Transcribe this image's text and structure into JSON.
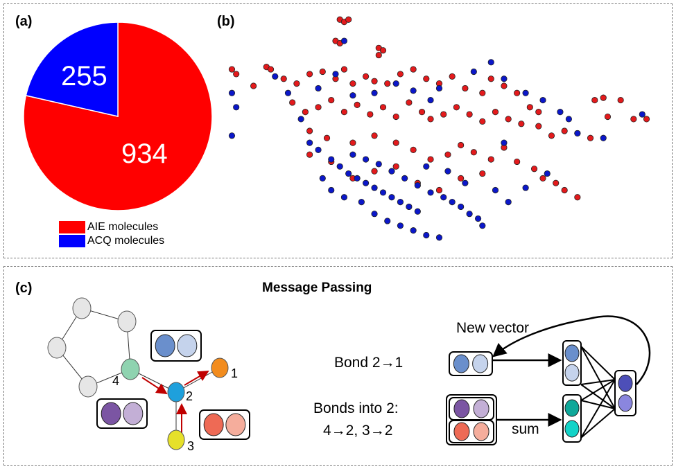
{
  "panels": {
    "a": "(a)",
    "b": "(b)",
    "c": "(c)"
  },
  "chart_data": [
    {
      "type": "pie",
      "slices": [
        {
          "name": "AIE molecules",
          "value": 934,
          "color": "#ff0000"
        },
        {
          "name": "ACQ molecules",
          "value": 255,
          "color": "#0000ff"
        }
      ],
      "legend_placement": "bottom"
    },
    {
      "type": "scatter",
      "axes_visible": false,
      "series": [
        {
          "name": "AIE molecules",
          "color": "#e31a1c",
          "points": [
            [
              27,
              97
            ],
            [
              28,
              96
            ],
            [
              29,
              97
            ],
            [
              26,
              88
            ],
            [
              27,
              87
            ],
            [
              36,
              85
            ],
            [
              37,
              84
            ],
            [
              36,
              82
            ],
            [
              2,
              76
            ],
            [
              3,
              74
            ],
            [
              10,
              77
            ],
            [
              11,
              76
            ],
            [
              7,
              69
            ],
            [
              14,
              72
            ],
            [
              17,
              70
            ],
            [
              20,
              74
            ],
            [
              23,
              75
            ],
            [
              26,
              72
            ],
            [
              28,
              76
            ],
            [
              30,
              70
            ],
            [
              33,
              73
            ],
            [
              35,
              71
            ],
            [
              38,
              70
            ],
            [
              41,
              74
            ],
            [
              44,
              76
            ],
            [
              47,
              72
            ],
            [
              50,
              70
            ],
            [
              53,
              73
            ],
            [
              56,
              68
            ],
            [
              60,
              66
            ],
            [
              62,
              72
            ],
            [
              65,
              69
            ],
            [
              68,
              66
            ],
            [
              71,
              60
            ],
            [
              73,
              58
            ],
            [
              16,
              62
            ],
            [
              19,
              58
            ],
            [
              22,
              60
            ],
            [
              25,
              63
            ],
            [
              28,
              58
            ],
            [
              31,
              61
            ],
            [
              34,
              57
            ],
            [
              37,
              60
            ],
            [
              40,
              56
            ],
            [
              43,
              62
            ],
            [
              46,
              58
            ],
            [
              48,
              55
            ],
            [
              51,
              57
            ],
            [
              54,
              60
            ],
            [
              57,
              57
            ],
            [
              60,
              54
            ],
            [
              63,
              58
            ],
            [
              66,
              55
            ],
            [
              69,
              53
            ],
            [
              73,
              52
            ],
            [
              76,
              48
            ],
            [
              79,
              50
            ],
            [
              82,
              49
            ],
            [
              85,
              47
            ],
            [
              86,
              63
            ],
            [
              88,
              64
            ],
            [
              89,
              56
            ],
            [
              92,
              63
            ],
            [
              95,
              55
            ],
            [
              98,
              55
            ],
            [
              20,
              50
            ],
            [
              24,
              47
            ],
            [
              30,
              45
            ],
            [
              35,
              48
            ],
            [
              40,
              45
            ],
            [
              44,
              42
            ],
            [
              48,
              38
            ],
            [
              52,
              40
            ],
            [
              55,
              44
            ],
            [
              58,
              41
            ],
            [
              62,
              38
            ],
            [
              65,
              43
            ],
            [
              68,
              37
            ],
            [
              72,
              34
            ],
            [
              74,
              30
            ],
            [
              77,
              28
            ],
            [
              79,
              25
            ],
            [
              82,
              22
            ],
            [
              20,
              40
            ],
            [
              25,
              37
            ],
            [
              30,
              30
            ],
            [
              35,
              33
            ],
            [
              40,
              35
            ],
            [
              45,
              28
            ],
            [
              50,
              25
            ],
            [
              55,
              30
            ],
            [
              60,
              32
            ]
          ]
        },
        {
          "name": "ACQ molecules",
          "color": "#0b17c9",
          "points": [
            [
              28,
              88
            ],
            [
              2,
              66
            ],
            [
              3,
              60
            ],
            [
              2,
              48
            ],
            [
              12,
              73
            ],
            [
              15,
              66
            ],
            [
              18,
              55
            ],
            [
              22,
              68
            ],
            [
              26,
              74
            ],
            [
              30,
              65
            ],
            [
              35,
              66
            ],
            [
              40,
              70
            ],
            [
              44,
              67
            ],
            [
              48,
              63
            ],
            [
              50,
              68
            ],
            [
              58,
              75
            ],
            [
              62,
              79
            ],
            [
              65,
              72
            ],
            [
              70,
              66
            ],
            [
              74,
              63
            ],
            [
              78,
              58
            ],
            [
              80,
              55
            ],
            [
              82,
              49
            ],
            [
              88,
              47
            ],
            [
              97,
              57
            ],
            [
              20,
              45
            ],
            [
              22,
              42
            ],
            [
              25,
              38
            ],
            [
              27,
              35
            ],
            [
              29,
              32
            ],
            [
              31,
              30
            ],
            [
              33,
              28
            ],
            [
              35,
              26
            ],
            [
              37,
              24
            ],
            [
              39,
              22
            ],
            [
              41,
              20
            ],
            [
              43,
              18
            ],
            [
              45,
              16
            ],
            [
              30,
              40
            ],
            [
              33,
              38
            ],
            [
              36,
              36
            ],
            [
              39,
              33
            ],
            [
              42,
              30
            ],
            [
              45,
              27
            ],
            [
              48,
              24
            ],
            [
              51,
              22
            ],
            [
              53,
              20
            ],
            [
              55,
              18
            ],
            [
              57,
              15
            ],
            [
              59,
              13
            ],
            [
              60,
              10
            ],
            [
              25,
              25
            ],
            [
              28,
              22
            ],
            [
              32,
              20
            ],
            [
              35,
              15
            ],
            [
              38,
              12
            ],
            [
              41,
              10
            ],
            [
              44,
              8
            ],
            [
              47,
              6
            ],
            [
              50,
              5
            ],
            [
              23,
              30
            ],
            [
              47,
              35
            ],
            [
              52,
              33
            ],
            [
              56,
              28
            ],
            [
              63,
              25
            ],
            [
              66,
              20
            ],
            [
              70,
              26
            ],
            [
              75,
              32
            ],
            [
              65,
              45
            ]
          ]
        }
      ]
    }
  ],
  "diagram": {
    "title": "Message Passing",
    "atom_labels": [
      "1",
      "2",
      "3",
      "4"
    ],
    "new_vector_label": "New vector",
    "bond_label": "Bond 2→1",
    "bonds_into_label_1": "Bonds into 2:",
    "bonds_into_label_2": "4→2, 3→2",
    "sum_label": "sum",
    "colors": {
      "ring_node": "#e6e6e6",
      "atom1": "#f28c1e",
      "atom2": "#1ea0dc",
      "atom3": "#e6e02a",
      "atom4": "#8fd3b0",
      "bond21": [
        "#6a8fcc",
        "#c5d3ec"
      ],
      "bond42": [
        "#7b55a3",
        "#c3afd6"
      ],
      "bond32": [
        "#ee6a55",
        "#f5ad9c"
      ],
      "teal": [
        "#0fa89a",
        "#12d3c8"
      ],
      "output": [
        "#4d4fb8",
        "#8a86de"
      ],
      "arrow": "#c00000"
    }
  }
}
